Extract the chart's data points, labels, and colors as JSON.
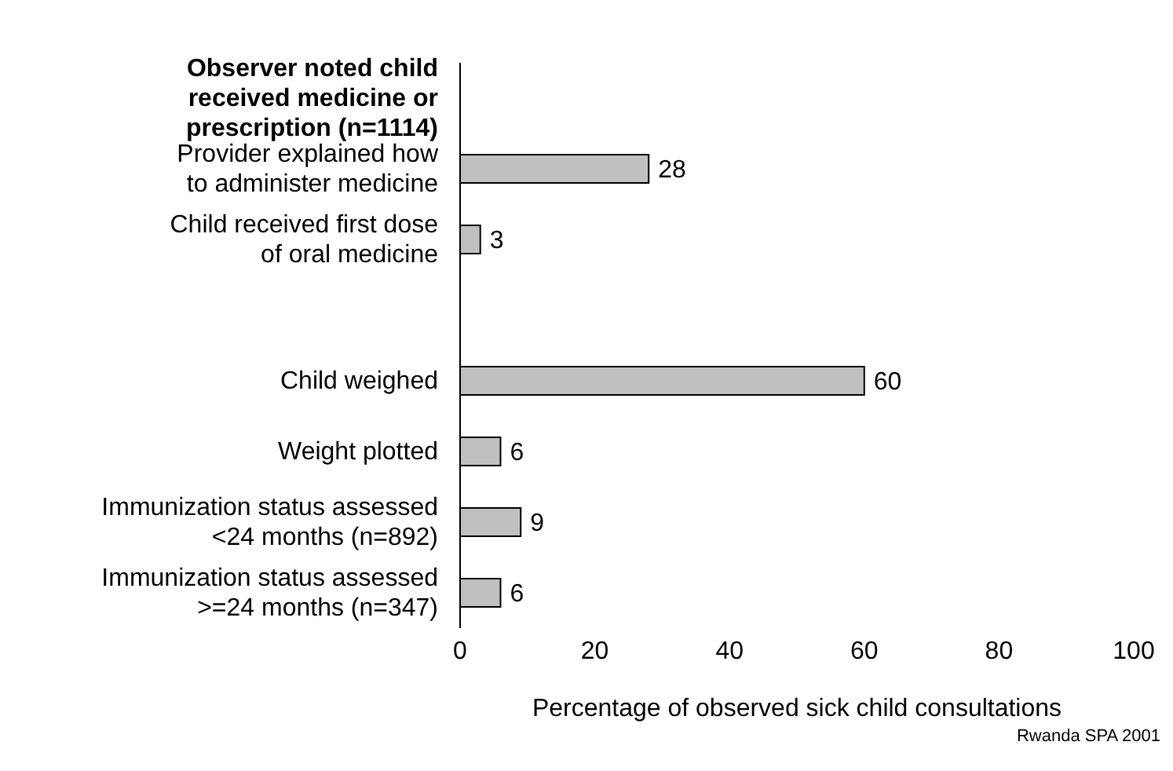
{
  "chart_data": {
    "type": "bar",
    "orientation": "horizontal",
    "categories": [
      "Observer noted child\nreceived medicine or\nprescription (n=1114)",
      "Provider explained how\nto administer medicine",
      "Child received first dose\nof oral medicine",
      null,
      "Child weighed",
      "Weight plotted",
      "Immunization status assessed\n<24 months (n=892)",
      "Immunization status assessed\n>=24 months (n=347)"
    ],
    "values": [
      null,
      28,
      3,
      null,
      60,
      6,
      9,
      6
    ],
    "color": "#c0c0c0",
    "xlim": [
      0,
      100
    ],
    "xticks": [
      0,
      20,
      40,
      60,
      80,
      100
    ],
    "xlabel": "Percentage of observed sick child consultations",
    "data_labels": true,
    "grid": false,
    "annotations": [
      "Rwanda SPA 2001"
    ]
  }
}
